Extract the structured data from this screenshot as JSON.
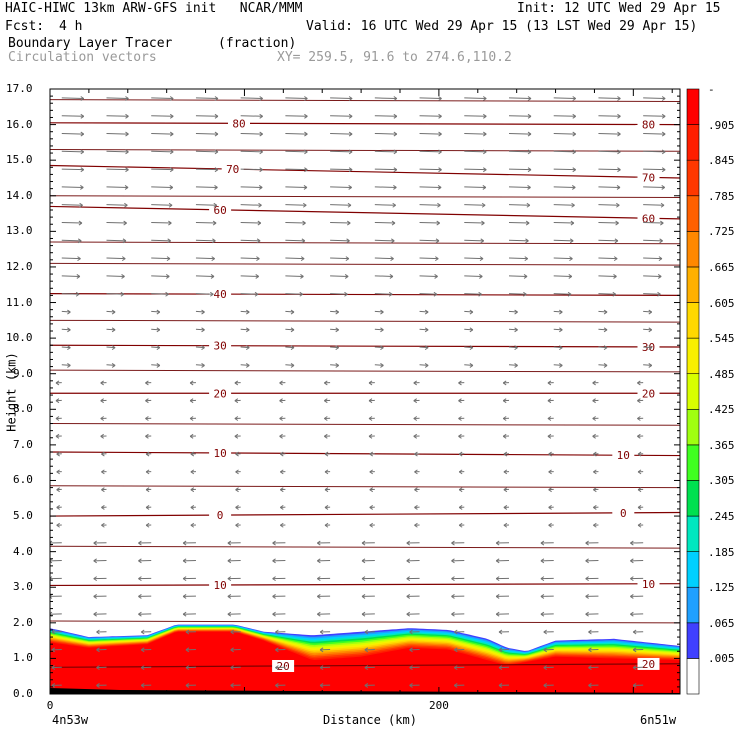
{
  "header": {
    "title_left": "HAIC-HIWC 13km ARW-GFS init   NCAR/MMM",
    "init": "Init: 12 UTC Wed 29 Apr 15",
    "fcst_label": "Fcst:",
    "fcst_value": "4 h",
    "valid": "Valid: 16 UTC Wed 29 Apr 15 (13 LST Wed 29 Apr 15)",
    "field_name": "Boundary Layer Tracer",
    "field_units": "(fraction)",
    "overlay_name": "Circulation vectors",
    "xy_info": "XY= 259.5, 91.6 to 274.6,110.2"
  },
  "chart_data": {
    "type": "cross-section",
    "ylabel": "Height (km)",
    "xlabel": "Distance (km)",
    "ylim": [
      0,
      17
    ],
    "xlim": [
      0,
      324
    ],
    "y_ticks": [
      "0.0",
      "1.0",
      "2.0",
      "3.0",
      "4.0",
      "5.0",
      "6.0",
      "7.0",
      "8.0",
      "9.0",
      "10.0",
      "11.0",
      "12.0",
      "13.0",
      "14.0",
      "15.0",
      "16.0",
      "17.0"
    ],
    "x_ticks": [
      {
        "x": 0,
        "label": "0"
      },
      {
        "x": 200,
        "label": "200"
      }
    ],
    "x_end_labels": {
      "left": "4n53w",
      "right": "6n51w"
    },
    "colorbar_levels": [
      ".005",
      ".065",
      ".125",
      ".185",
      ".245",
      ".305",
      ".365",
      ".425",
      ".485",
      ".545",
      ".605",
      ".665",
      ".725",
      ".785",
      ".845",
      ".905",
      "-"
    ],
    "colorbar_colors": [
      "#ffffff",
      "#4040ff",
      "#1fa0ff",
      "#00d0ff",
      "#00e8c0",
      "#00e050",
      "#40ff20",
      "#a0ff10",
      "#d8ff00",
      "#f8f000",
      "#ffd800",
      "#ffb000",
      "#ff8800",
      "#ff6000",
      "#ff3800",
      "#ff1e00",
      "#ff0000"
    ],
    "tracer_top_km": [
      [
        0,
        1.85
      ],
      [
        20,
        1.6
      ],
      [
        50,
        1.65
      ],
      [
        65,
        1.95
      ],
      [
        95,
        1.95
      ],
      [
        110,
        1.75
      ],
      [
        135,
        1.65
      ],
      [
        160,
        1.75
      ],
      [
        185,
        1.85
      ],
      [
        205,
        1.8
      ],
      [
        225,
        1.55
      ],
      [
        235,
        1.3
      ],
      [
        245,
        1.2
      ],
      [
        260,
        1.5
      ],
      [
        290,
        1.55
      ],
      [
        324,
        1.35
      ]
    ],
    "tracer_core_km": [
      [
        0,
        1.45
      ],
      [
        20,
        1.3
      ],
      [
        50,
        1.4
      ],
      [
        65,
        1.75
      ],
      [
        95,
        1.75
      ],
      [
        110,
        1.5
      ],
      [
        135,
        0.95
      ],
      [
        160,
        1.05
      ],
      [
        185,
        1.3
      ],
      [
        205,
        1.25
      ],
      [
        225,
        0.95
      ],
      [
        235,
        0.8
      ],
      [
        260,
        1.05
      ],
      [
        290,
        1.0
      ],
      [
        324,
        0.95
      ]
    ],
    "isotherms": [
      {
        "label": "80",
        "h0": 16.05,
        "h1": 16.0,
        "lx1": 0.3,
        "lx2": 0.95
      },
      {
        "label": "70",
        "h0": 14.85,
        "h1": 14.5,
        "lx1": 0.29,
        "lx2": 0.95
      },
      {
        "label": "60",
        "h0": 13.7,
        "h1": 13.35,
        "lx1": 0.27,
        "lx2": 0.95
      },
      {
        "label": "40",
        "h0": 11.25,
        "h1": 11.2,
        "lx1": 0.27,
        "lx2": 0.0
      },
      {
        "label": "30",
        "h0": 9.8,
        "h1": 9.75,
        "lx1": 0.27,
        "lx2": 0.95
      },
      {
        "label": "20",
        "h0": 8.45,
        "h1": 8.45,
        "lx1": 0.27,
        "lx2": 0.95
      },
      {
        "label": "10",
        "h0": 6.8,
        "h1": 6.7,
        "lx1": 0.27,
        "lx2": 0.91
      },
      {
        "label": "0",
        "h0": 5.0,
        "h1": 5.1,
        "lx1": 0.27,
        "lx2": 0.91
      },
      {
        "label": "10",
        "h0": 3.05,
        "h1": 3.1,
        "lx1": 0.27,
        "lx2": 0.95
      },
      {
        "label": "20",
        "h0": 0.75,
        "h1": 0.85,
        "lx1": 0.37,
        "lx2": 0.95
      }
    ],
    "extra_lines_km": [
      17.2,
      16.7,
      15.3,
      14.0,
      12.7,
      12.1,
      10.5,
      9.1,
      7.6,
      5.85,
      4.15,
      2.05
    ]
  }
}
